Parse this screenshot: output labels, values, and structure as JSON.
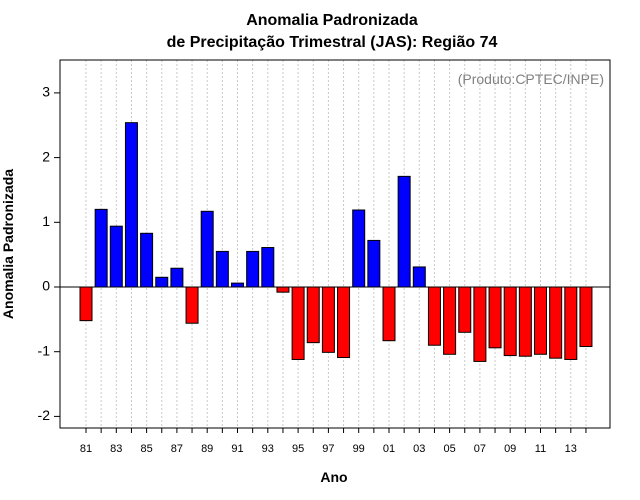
{
  "chart_data": {
    "type": "bar",
    "title": "Anomalia Padronizada",
    "subtitle": "de Precipitação Trimestral (JAS): Região 74",
    "xlabel": "Ano",
    "ylabel": "Anomalia Padronizada",
    "annotation": "(Produto:CPTEC/INPE)",
    "ylim": [
      -2.2,
      3.55
    ],
    "yticks": [
      -2,
      -1,
      0,
      1,
      2,
      3
    ],
    "grid": "vertical-dotted",
    "positive_color": "#0000ff",
    "negative_color": "#ff0000",
    "categories": [
      "81",
      "82",
      "83",
      "84",
      "85",
      "86",
      "87",
      "88",
      "89",
      "90",
      "91",
      "92",
      "93",
      "94",
      "95",
      "96",
      "97",
      "98",
      "99",
      "00",
      "01",
      "02",
      "03",
      "04",
      "05",
      "06",
      "07",
      "08",
      "09",
      "10",
      "11",
      "12",
      "13",
      "14"
    ],
    "tick_labels": [
      "81",
      "",
      "83",
      "",
      "85",
      "",
      "87",
      "",
      "89",
      "",
      "91",
      "",
      "93",
      "",
      "95",
      "",
      "97",
      "",
      "99",
      "",
      "01",
      "",
      "03",
      "",
      "05",
      "",
      "07",
      "",
      "09",
      "",
      "11",
      "",
      "13",
      ""
    ],
    "values": [
      -0.52,
      1.2,
      0.94,
      2.54,
      0.83,
      0.15,
      0.29,
      -0.56,
      1.17,
      0.55,
      0.06,
      0.55,
      0.61,
      -0.08,
      -1.12,
      -0.86,
      -1.01,
      -1.09,
      1.19,
      0.72,
      -0.83,
      1.71,
      0.31,
      -0.9,
      -1.04,
      -0.7,
      -1.15,
      -0.94,
      -1.06,
      -1.07,
      -1.04,
      -1.1,
      -1.12,
      -0.92
    ]
  }
}
